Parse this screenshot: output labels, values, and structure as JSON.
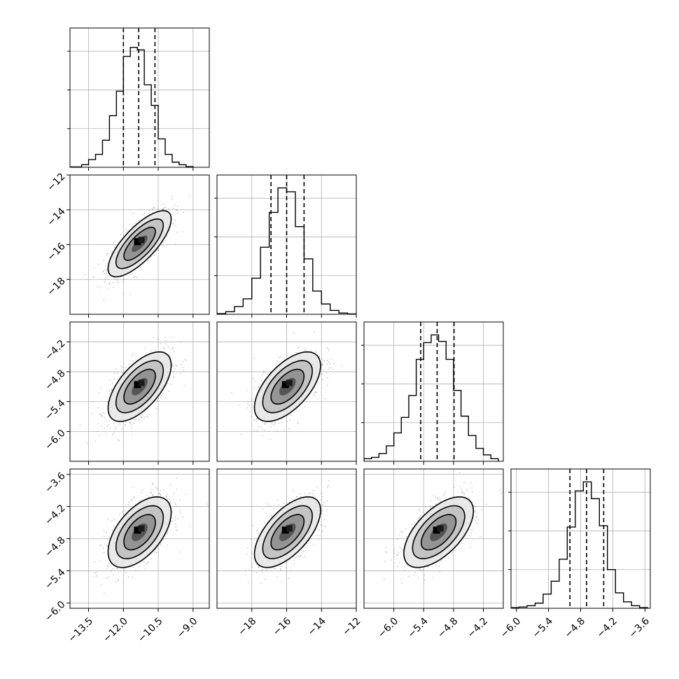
{
  "chart_data": {
    "type": "corner",
    "title": "",
    "grid": true,
    "parameters": [
      {
        "name": "",
        "range": [
          -14.3,
          -8.3
        ],
        "ticks": [
          -13.5,
          -12.0,
          -10.5,
          -9.0
        ],
        "tick_labels": [
          "−13.5",
          "−12.0",
          "−10.5",
          "−9.0"
        ],
        "quantiles": [
          -12.0,
          -11.34,
          -10.64
        ],
        "center": -11.3,
        "sd": 0.68
      },
      {
        "name": "",
        "range": [
          -20.0,
          -12.0
        ],
        "ticks": [
          -18,
          -16,
          -14,
          -12
        ],
        "tick_labels": [
          "−18",
          "−16",
          "−14",
          "−12"
        ],
        "quantiles": [
          -16.9,
          -16.0,
          -15.0
        ],
        "center": -15.95,
        "sd": 0.95
      },
      {
        "name": "",
        "range": [
          -6.6,
          -3.8
        ],
        "ticks": [
          -6.0,
          -5.4,
          -4.8,
          -4.2
        ],
        "tick_labels": [
          "−6.0",
          "−5.4",
          "−4.8",
          "−4.2"
        ],
        "quantiles": [
          -5.46,
          -5.13,
          -4.79
        ],
        "center": -5.1,
        "sd": 0.35
      },
      {
        "name": "",
        "range": [
          -6.1,
          -3.5
        ],
        "ticks": [
          -6.0,
          -5.4,
          -4.8,
          -4.2,
          -3.6
        ],
        "tick_labels": [
          "−6.0",
          "−5.4",
          "−4.8",
          "−4.2",
          "−3.6"
        ],
        "quantiles": [
          -5.0,
          -4.69,
          -4.37
        ],
        "center": -4.68,
        "sd": 0.33
      }
    ],
    "correlations": [
      [
        1,
        0.75,
        0.62,
        0.55
      ],
      [
        0.75,
        1,
        0.6,
        0.62
      ],
      [
        0.62,
        0.6,
        1,
        0.6
      ],
      [
        0.55,
        0.62,
        0.6,
        1
      ]
    ],
    "histograms": [
      {
        "bins": [
          -14.3,
          -13.8,
          -13.5,
          -13.2,
          -12.9,
          -12.6,
          -12.3,
          -12.0,
          -11.7,
          -11.4,
          -11.1,
          -10.8,
          -10.5,
          -10.2,
          -9.9,
          -9.6,
          -9.3,
          -9.0
        ],
        "counts": [
          0.003,
          0.02,
          0.06,
          0.1,
          0.21,
          0.4,
          0.59,
          0.86,
          0.93,
          0.91,
          0.64,
          0.48,
          0.22,
          0.1,
          0.04,
          0.02,
          0.005
        ]
      },
      {
        "bins": [
          -20.0,
          -19.5,
          -19.0,
          -18.5,
          -18.0,
          -17.5,
          -17.0,
          -16.5,
          -16.0,
          -15.5,
          -15.0,
          -14.5,
          -14.0,
          -13.5,
          -13.0,
          -12.5,
          -12.0
        ],
        "counts": [
          0.005,
          0.02,
          0.06,
          0.12,
          0.28,
          0.52,
          0.79,
          0.98,
          0.95,
          0.68,
          0.43,
          0.18,
          0.08,
          0.03,
          0.01,
          0.003
        ]
      },
      {
        "bins": [
          -6.6,
          -6.45,
          -6.3,
          -6.15,
          -6.0,
          -5.85,
          -5.7,
          -5.55,
          -5.4,
          -5.25,
          -5.1,
          -4.95,
          -4.8,
          -4.65,
          -4.5,
          -4.35,
          -4.2,
          -4.05,
          -3.9
        ],
        "counts": [
          0.02,
          0.03,
          0.06,
          0.12,
          0.22,
          0.34,
          0.51,
          0.79,
          0.92,
          0.98,
          0.93,
          0.79,
          0.55,
          0.35,
          0.2,
          0.1,
          0.05,
          0.02
        ]
      },
      {
        "bins": [
          -6.1,
          -5.95,
          -5.8,
          -5.65,
          -5.5,
          -5.35,
          -5.2,
          -5.05,
          -4.9,
          -4.75,
          -4.6,
          -4.45,
          -4.3,
          -4.15,
          -4.0,
          -3.85,
          -3.7,
          -3.55
        ],
        "counts": [
          0.005,
          0.01,
          0.02,
          0.04,
          0.11,
          0.21,
          0.38,
          0.63,
          0.91,
          0.98,
          0.85,
          0.64,
          0.3,
          0.12,
          0.05,
          0.02,
          0.005
        ]
      }
    ],
    "contour_levels_sigma": [
      0.5,
      1.0,
      1.5,
      2.0
    ]
  }
}
